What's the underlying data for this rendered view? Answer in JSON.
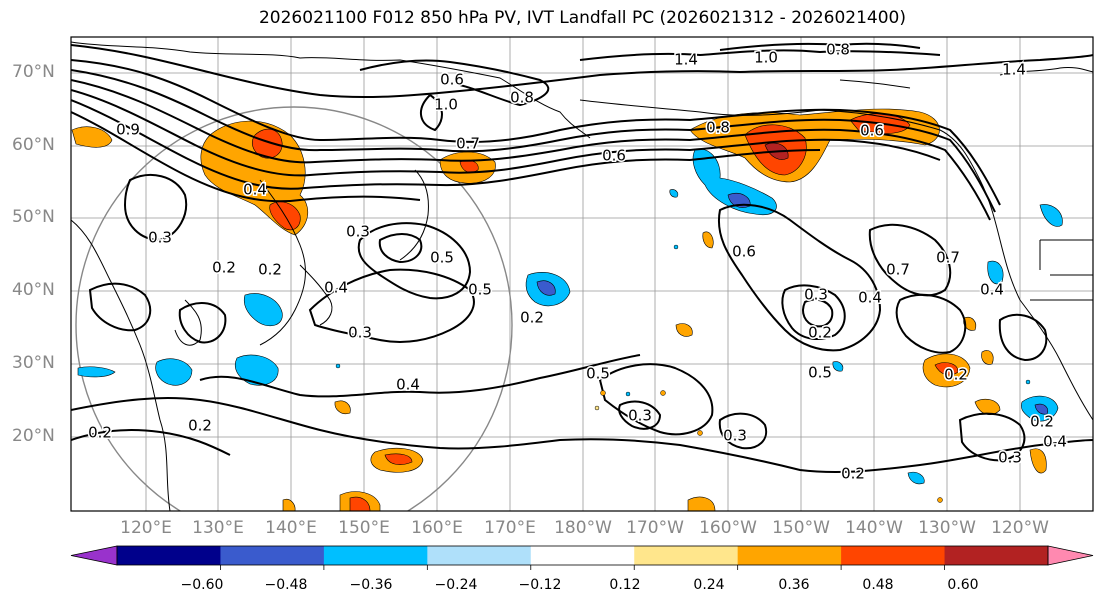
{
  "title": "2026021100 F012 850 hPa PV, IVT Landfall PC (2026021312 - 2026021400)",
  "map": {
    "lat_labels": [
      "70°N",
      "60°N",
      "50°N",
      "40°N",
      "30°N",
      "20°N"
    ],
    "lon_labels": [
      "120°E",
      "130°E",
      "140°E",
      "150°E",
      "160°E",
      "170°E",
      "180°W",
      "170°W",
      "160°W",
      "150°W",
      "140°W",
      "130°W",
      "120°W"
    ],
    "contour_labels": [
      "1.0",
      "0.8",
      "0.6",
      "1.4",
      "1.0",
      "0.8",
      "1.4",
      "0.9",
      "0.7",
      "0.8",
      "0.4",
      "0.6",
      "0.6",
      "0.3",
      "0.2",
      "0.4",
      "0.3",
      "0.5",
      "0.2",
      "0.5",
      "0.2",
      "0.3",
      "0.2",
      "0.4",
      "0.5",
      "0.7",
      "0.3",
      "0.2",
      "0.6",
      "0.5",
      "0.4",
      "0.7",
      "0.2",
      "0.2",
      "0.3",
      "0.4",
      "0.2",
      "0.2",
      "0.3",
      "0.3",
      "0.4"
    ]
  },
  "colorbar": {
    "ticks": [
      "−0.60",
      "−0.48",
      "−0.36",
      "−0.24",
      "−0.12",
      "0.12",
      "0.24",
      "0.36",
      "0.48",
      "0.60"
    ],
    "colors": [
      "#9932cc",
      "#00008b",
      "#3a5bcd",
      "#00bfff",
      "#afe0fa",
      "#ffffff",
      "#ffe68c",
      "#ffa500",
      "#ff4500",
      "#b22222",
      "#ff89b0"
    ]
  }
}
